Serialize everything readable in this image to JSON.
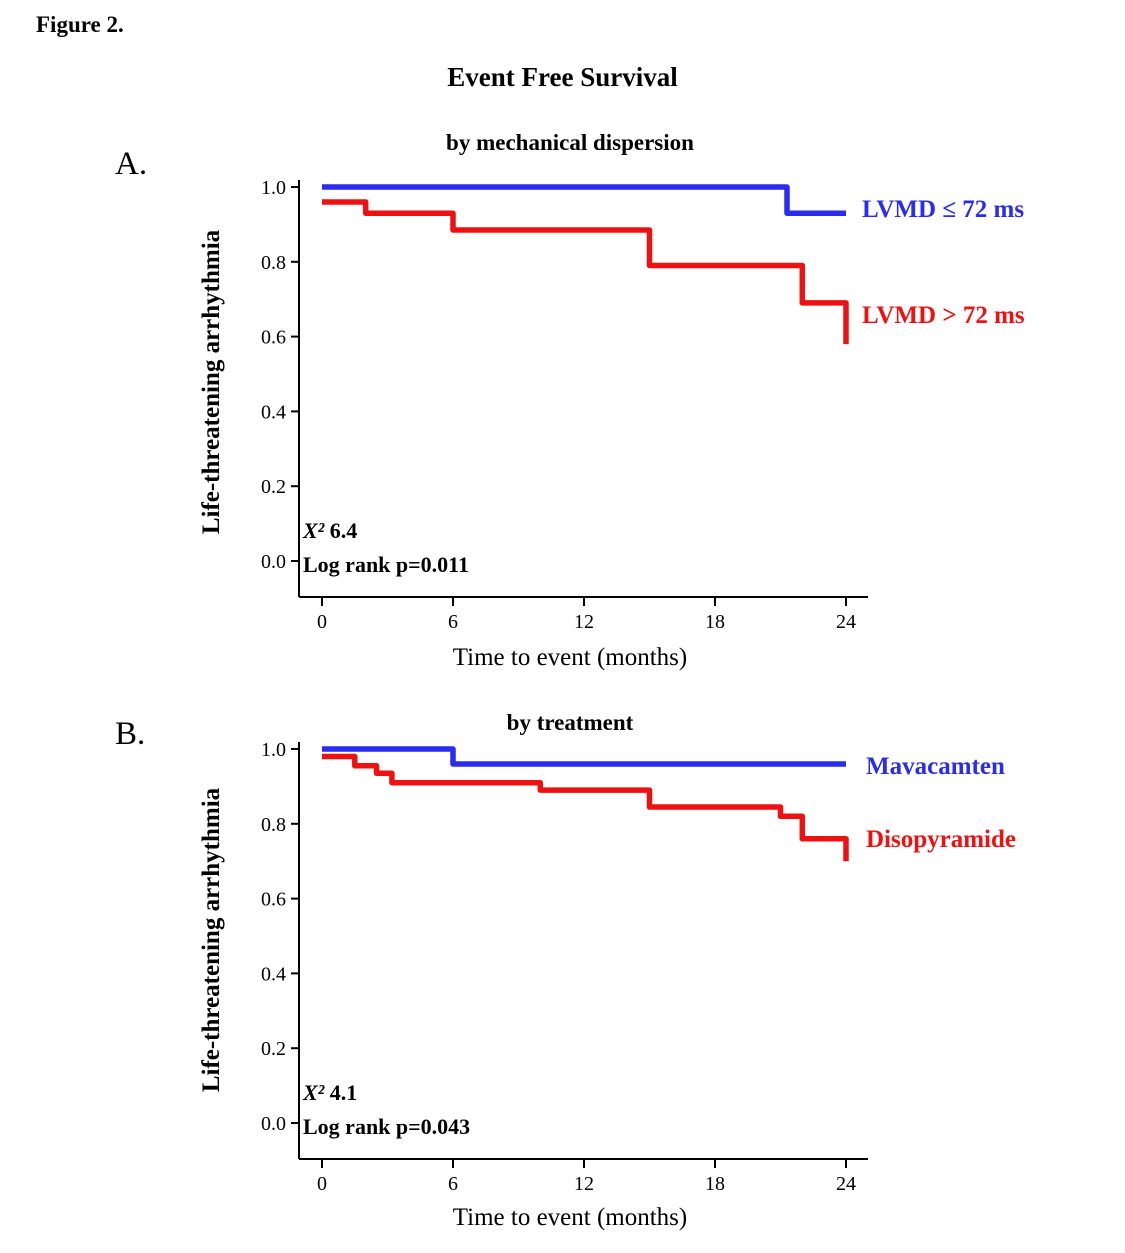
{
  "figure_label": "Figure 2.",
  "title": "Event Free Survival",
  "colors": {
    "blue": "#2a2cee",
    "red": "#ee1111",
    "axis": "#000000"
  },
  "chart_data": [
    {
      "type": "line",
      "subtype": "kaplan-meier-step",
      "panel": "A.",
      "subtitle": "by mechanical dispersion",
      "title": "Event Free Survival",
      "xlabel": "Time to event (months)",
      "ylabel": "Life-threatening arrhythmia",
      "xlim": [
        0,
        24
      ],
      "ylim": [
        0.0,
        1.0
      ],
      "xticks": [
        0,
        6,
        12,
        18,
        24
      ],
      "yticks": [
        0.0,
        0.2,
        0.4,
        0.6,
        0.8,
        1.0
      ],
      "grid": false,
      "legend_position": "right-of-curves",
      "stats": {
        "chi_symbol": "X²",
        "chi_value": "6.4",
        "logrank": "Log rank p=0.011"
      },
      "series": [
        {
          "name": "LVMD ≤  72 ms",
          "color": "#2a2cee",
          "steps": [
            [
              0,
              1.0
            ],
            [
              21.3,
              1.0
            ],
            [
              21.3,
              0.93
            ],
            [
              24,
              0.93
            ]
          ]
        },
        {
          "name": "LVMD >  72 ms",
          "color": "#ee1111",
          "steps": [
            [
              0,
              0.96
            ],
            [
              2,
              0.96
            ],
            [
              2,
              0.93
            ],
            [
              6,
              0.93
            ],
            [
              6,
              0.885
            ],
            [
              15,
              0.885
            ],
            [
              15,
              0.79
            ],
            [
              22,
              0.79
            ],
            [
              22,
              0.69
            ],
            [
              24,
              0.69
            ],
            [
              24,
              0.58
            ]
          ]
        }
      ]
    },
    {
      "type": "line",
      "subtype": "kaplan-meier-step",
      "panel": "B.",
      "subtitle": "by treatment",
      "xlabel": "Time to event (months)",
      "ylabel": "Life-threatening arrhythmia",
      "xlim": [
        0,
        24
      ],
      "ylim": [
        0.0,
        1.0
      ],
      "xticks": [
        0,
        6,
        12,
        18,
        24
      ],
      "yticks": [
        0.0,
        0.2,
        0.4,
        0.6,
        0.8,
        1.0
      ],
      "grid": false,
      "legend_position": "right-of-curves",
      "stats": {
        "chi_symbol": "X²",
        "chi_value": "4.1",
        "logrank": "Log rank p=0.043"
      },
      "series": [
        {
          "name": "Mavacamten",
          "color": "#2a2cee",
          "steps": [
            [
              0,
              1.0
            ],
            [
              6,
              1.0
            ],
            [
              6,
              0.96
            ],
            [
              24,
              0.96
            ]
          ]
        },
        {
          "name": "Disopyramide",
          "color": "#ee1111",
          "steps": [
            [
              0,
              0.98
            ],
            [
              1.5,
              0.98
            ],
            [
              1.5,
              0.955
            ],
            [
              2.5,
              0.955
            ],
            [
              2.5,
              0.935
            ],
            [
              3.2,
              0.935
            ],
            [
              3.2,
              0.91
            ],
            [
              10,
              0.91
            ],
            [
              10,
              0.89
            ],
            [
              15,
              0.89
            ],
            [
              15,
              0.845
            ],
            [
              21,
              0.845
            ],
            [
              21,
              0.82
            ],
            [
              22,
              0.82
            ],
            [
              22,
              0.76
            ],
            [
              24,
              0.76
            ],
            [
              24,
              0.7
            ]
          ]
        }
      ]
    }
  ]
}
